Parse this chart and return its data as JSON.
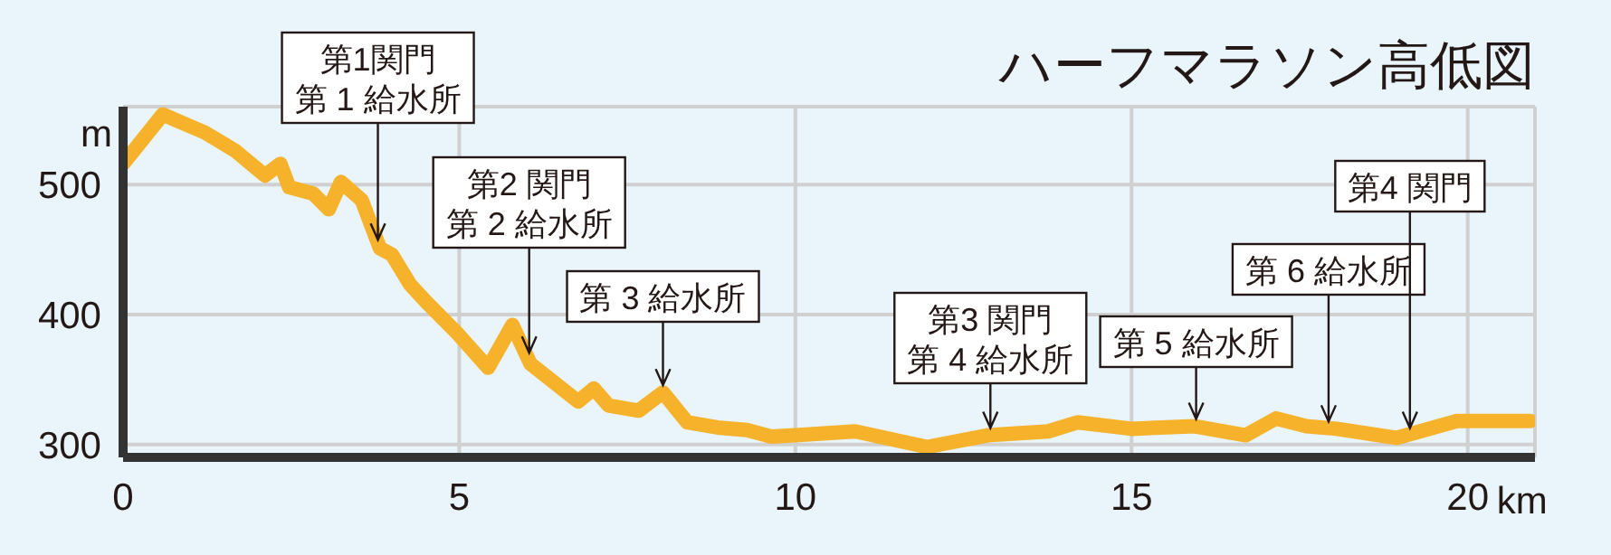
{
  "chart_data": {
    "type": "line",
    "title": "ハーフマラソン高低図",
    "xlabel": "km",
    "ylabel": "m",
    "x": [
      0,
      0.59,
      1.22,
      1.67,
      2.11,
      2.34,
      2.47,
      2.83,
      3.06,
      3.24,
      3.55,
      3.82,
      4.0,
      4.27,
      4.54,
      4.98,
      5.43,
      5.79,
      6.06,
      6.77,
      7.0,
      7.22,
      7.67,
      8.03,
      8.39,
      8.84,
      9.28,
      9.64,
      10.0,
      10.89,
      11.96,
      12.86,
      13.76,
      14.2,
      15.0,
      15.94,
      16.7,
      17.15,
      17.6,
      18.05,
      18.94,
      19.84,
      20.93
    ],
    "series": [
      {
        "color": "#f5b22a",
        "values": [
          516,
          554,
          540,
          526,
          507,
          516,
          498,
          493,
          481,
          502,
          488,
          451,
          446,
          423,
          408,
          385,
          359,
          392,
          362,
          333,
          343,
          330,
          326,
          340,
          317,
          313,
          311,
          306,
          307,
          310,
          298,
          307,
          310,
          317,
          312,
          314,
          307,
          320,
          314,
          312,
          305,
          318,
          318
        ]
      }
    ],
    "xlim": [
      0,
      21
    ],
    "xticks": [
      0,
      5,
      10,
      15,
      20
    ],
    "ylim": [
      290,
      560
    ],
    "yticks": [
      300,
      400,
      500
    ],
    "grid": true,
    "marker": "none",
    "line_style": "solid",
    "annotations": [
      "第1関門",
      {
        "text": "第 1 給水所",
        "x": 3.79,
        "y": 452
      },
      "第2 関門",
      {
        "text": "第 2 給水所",
        "x": 6.04,
        "y": 365
      },
      {
        "text": "第 3 給水所",
        "x": 8.03,
        "y": 340
      },
      "第3 関門",
      {
        "text": "第 4 給水所",
        "x": 12.9,
        "y": 307
      },
      {
        "text": "第 5 給水所",
        "x": 15.96,
        "y": 314
      },
      {
        "text": "第 6 給水所",
        "x": 17.93,
        "y": 312
      },
      {
        "text": "第4 関門",
        "x": 19.14,
        "y": 307
      }
    ]
  }
}
